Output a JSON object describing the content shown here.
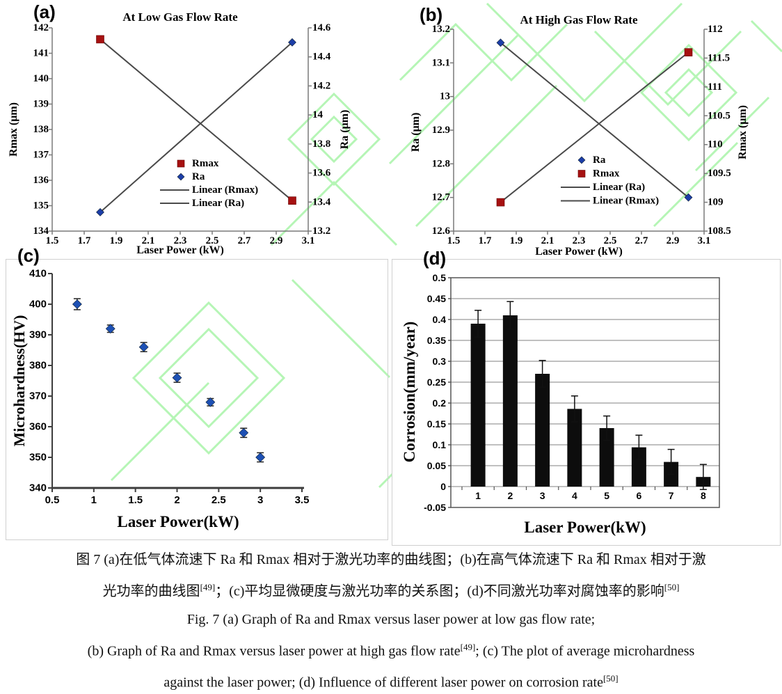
{
  "page": {
    "background": "#ffffff",
    "watermark_color": "#b5f5b5"
  },
  "chart_data": [
    {
      "id": "a",
      "panel_label": "(a)",
      "type": "scatter",
      "title": "At Low Gas Flow Rate",
      "xlabel": "Laser Power (kW)",
      "ylabel_left": "Rmax (μm)",
      "ylabel_right": "Ra (μm)",
      "x_ticks": [
        "1.5",
        "1.7",
        "1.9",
        "2.1",
        "2.3",
        "2.5",
        "2.7",
        "2.9",
        "3.1"
      ],
      "y_left_ticks": [
        "134",
        "135",
        "136",
        "137",
        "138",
        "139",
        "140",
        "141",
        "142"
      ],
      "y_right_ticks": [
        "13.2",
        "13.4",
        "13.6",
        "13.8",
        "14",
        "14.2",
        "14.4",
        "14.6"
      ],
      "axis_color": "#7a7a7a",
      "trend_color": "#4a4a4a",
      "series": [
        {
          "name": "Rmax",
          "axis": "left",
          "marker": "square",
          "color": "#a61111",
          "points": [
            [
              1.8,
              141.55
            ],
            [
              3.0,
              135.2
            ]
          ]
        },
        {
          "name": "Ra",
          "axis": "right",
          "marker": "diamond",
          "color": "#1c3ea8",
          "points": [
            [
              1.8,
              13.33
            ],
            [
              3.0,
              14.5
            ]
          ]
        }
      ],
      "legend": [
        {
          "label": "Rmax",
          "swatch": "square",
          "color": "#a61111"
        },
        {
          "label": "Ra",
          "swatch": "diamond",
          "color": "#1c3ea8"
        },
        {
          "label": "Linear (Rmax)",
          "swatch": "line",
          "color": "#4a4a4a"
        },
        {
          "label": "Linear (Ra)",
          "swatch": "line",
          "color": "#4a4a4a"
        }
      ]
    },
    {
      "id": "b",
      "panel_label": "(b)",
      "type": "scatter",
      "title": "At High Gas Flow Rate",
      "xlabel": "Laser Power (kW)",
      "ylabel_left": "Ra (μm)",
      "ylabel_right": "Rmax (μm)",
      "x_ticks": [
        "1.5",
        "1.7",
        "1.9",
        "2.1",
        "2.3",
        "2.5",
        "2.7",
        "2.9",
        "3.1"
      ],
      "y_left_ticks": [
        "12.6",
        "12.7",
        "12.8",
        "12.9",
        "13",
        "13.1",
        "13.2"
      ],
      "y_right_ticks": [
        "108.5",
        "109",
        "109.5",
        "110",
        "110.5",
        "111",
        "111.5",
        "112"
      ],
      "axis_color": "#7a7a7a",
      "trend_color": "#4a4a4a",
      "series": [
        {
          "name": "Ra",
          "axis": "left",
          "marker": "diamond",
          "color": "#1c3ea8",
          "points": [
            [
              1.8,
              13.16
            ],
            [
              3.0,
              12.7
            ]
          ]
        },
        {
          "name": "Rmax",
          "axis": "right",
          "marker": "square",
          "color": "#a61111",
          "points": [
            [
              1.8,
              109.0
            ],
            [
              3.0,
              111.6
            ]
          ]
        }
      ],
      "legend": [
        {
          "label": "Ra",
          "swatch": "diamond",
          "color": "#1c3ea8"
        },
        {
          "label": "Rmax",
          "swatch": "square",
          "color": "#a61111"
        },
        {
          "label": "Linear (Ra)",
          "swatch": "line",
          "color": "#4a4a4a"
        },
        {
          "label": "Linear (Rmax)",
          "swatch": "line",
          "color": "#4a4a4a"
        }
      ]
    },
    {
      "id": "c",
      "panel_label": "(c)",
      "type": "scatter-error",
      "title": "",
      "xlabel": "Laser Power(kW)",
      "ylabel": "Microhardness(HV)",
      "x_ticks": [
        "0.5",
        "1",
        "1.5",
        "2",
        "2.5",
        "3",
        "3.5"
      ],
      "y_ticks": [
        "340",
        "350",
        "360",
        "370",
        "380",
        "390",
        "400",
        "410"
      ],
      "axis_color": "#3d3d3d",
      "marker_color": "#1d50b4",
      "points": [
        [
          0.8,
          400
        ],
        [
          1.2,
          392
        ],
        [
          1.6,
          386
        ],
        [
          2.0,
          376
        ],
        [
          2.4,
          368
        ],
        [
          2.8,
          358
        ],
        [
          3.0,
          350
        ]
      ],
      "errors": [
        1.8,
        1.2,
        1.5,
        1.5,
        1.2,
        1.5,
        1.5
      ]
    },
    {
      "id": "d",
      "panel_label": "(d)",
      "type": "bar",
      "title": "",
      "xlabel": "Laser Power(kW)",
      "ylabel": "Corrosion(mm/year)",
      "categories": [
        "1",
        "2",
        "3",
        "4",
        "5",
        "6",
        "7",
        "8"
      ],
      "values": [
        0.39,
        0.41,
        0.27,
        0.186,
        0.14,
        0.094,
        0.059,
        0.023
      ],
      "errors": [
        0.032,
        0.033,
        0.032,
        0.031,
        0.029,
        0.029,
        0.03,
        0.03
      ],
      "y_ticks": [
        "-0.05",
        "0",
        "0.05",
        "0.1",
        "0.15",
        "0.2",
        "0.25",
        "0.3",
        "0.35",
        "0.4",
        "0.45",
        "0.5"
      ],
      "bar_color": "#0d0d0d",
      "grid_color": "#808080",
      "frame_color": "#555555",
      "ylim": [
        -0.05,
        0.5
      ]
    }
  ],
  "caption": {
    "lines": [
      {
        "segments": [
          {
            "t": "图 7 (a)在低气体流速下 Ra 和 Rmax 相对于激光功率的曲线图；(b)在高气体流速下 Ra 和 Rmax 相对于激"
          }
        ]
      },
      {
        "segments": [
          {
            "t": "光功率的曲线图"
          },
          {
            "t": "[49]",
            "sup": true
          },
          {
            "t": "；(c)平均显微硬度与激光功率的关系图；(d)不同激光功率对腐蚀率的影响"
          },
          {
            "t": "[50]",
            "sup": true
          }
        ]
      },
      {
        "segments": [
          {
            "t": "Fig. 7 (a) Graph of Ra and Rmax versus laser power at low gas flow rate;"
          }
        ]
      },
      {
        "segments": [
          {
            "t": "(b) Graph of Ra and Rmax versus laser power at high gas flow rate"
          },
          {
            "t": "[49]",
            "sup": true
          },
          {
            "t": "; (c) The plot of average microhardness"
          }
        ]
      },
      {
        "segments": [
          {
            "t": "against the laser power; (d) Influence of different laser power on corrosion rate"
          },
          {
            "t": "[50]",
            "sup": true
          }
        ]
      }
    ]
  }
}
